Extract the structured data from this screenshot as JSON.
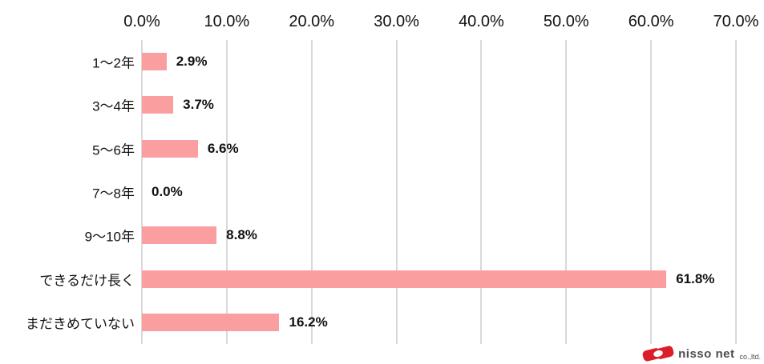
{
  "chart_data": {
    "type": "bar",
    "orientation": "horizontal",
    "title": "",
    "xlabel": "",
    "ylabel": "",
    "categories": [
      "1～2年",
      "3～4年",
      "5～6年",
      "7～8年",
      "9～10年",
      "できるだけ長く",
      "まだきめていない"
    ],
    "values": [
      2.9,
      3.7,
      6.6,
      0.0,
      8.8,
      61.8,
      16.2
    ],
    "value_labels": [
      "2.9%",
      "3.7%",
      "6.6%",
      "0.0%",
      "8.8%",
      "61.8%",
      "16.2%"
    ],
    "x_axis": {
      "position": "top",
      "min": 0,
      "max": 70,
      "tick_step": 10,
      "tick_labels": [
        "0.0%",
        "10.0%",
        "20.0%",
        "30.0%",
        "40.0%",
        "50.0%",
        "60.0%",
        "70.0%"
      ]
    },
    "grid": true,
    "legend": false,
    "bar_color": "#fa9ea0",
    "grid_color": "#d9d9d9",
    "text_color": "#111111"
  },
  "logo": {
    "name": "nisso net",
    "suffix": "co.,ltd.",
    "icon": "nisso-ribbon-icon",
    "icon_color": "#dc1e28",
    "text_color": "#4d4d4d"
  }
}
